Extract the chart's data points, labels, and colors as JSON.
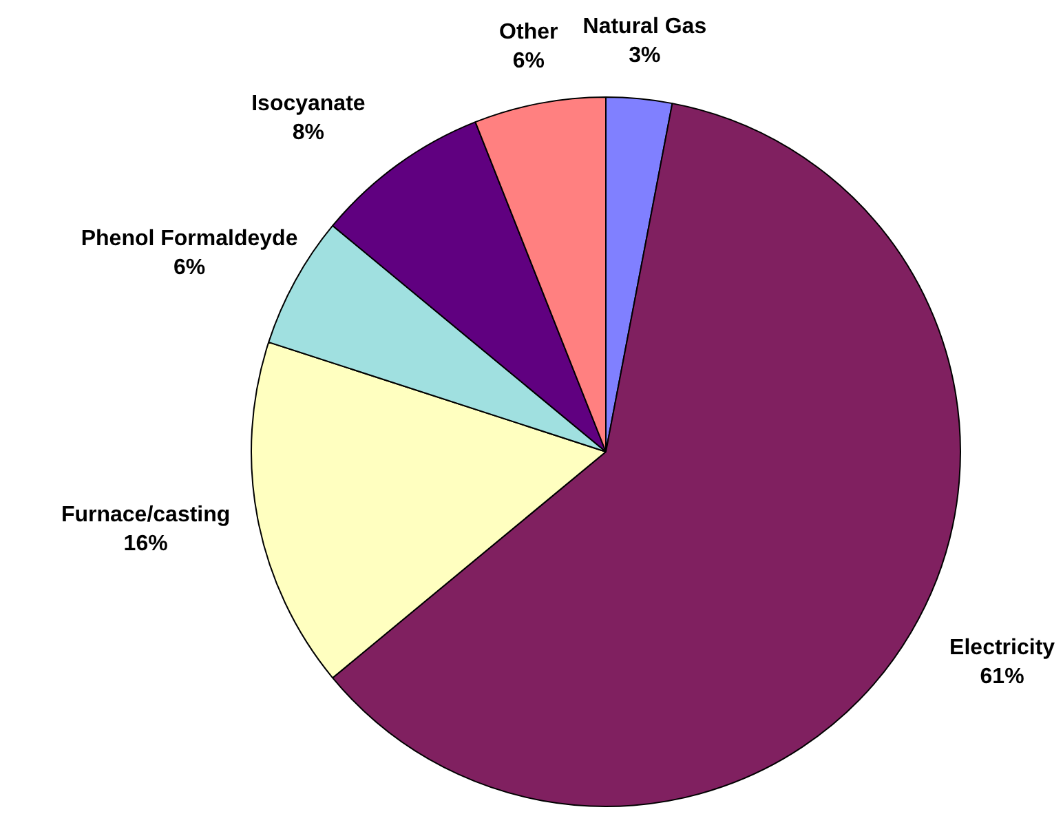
{
  "chart_data": {
    "type": "pie",
    "categories": [
      "Natural Gas",
      "Electricity",
      "Furnace/casting",
      "Phenol Formaldeyde",
      "Isocyanate",
      "Other"
    ],
    "values": [
      3,
      61,
      16,
      6,
      8,
      6
    ],
    "colors": [
      "#8080ff",
      "#802060",
      "#ffffc0",
      "#a0e0e0",
      "#600080",
      "#ff8080"
    ],
    "value_labels": [
      "3%",
      "61%",
      "16%",
      "6%",
      "8%",
      "6%"
    ],
    "legend": false
  }
}
